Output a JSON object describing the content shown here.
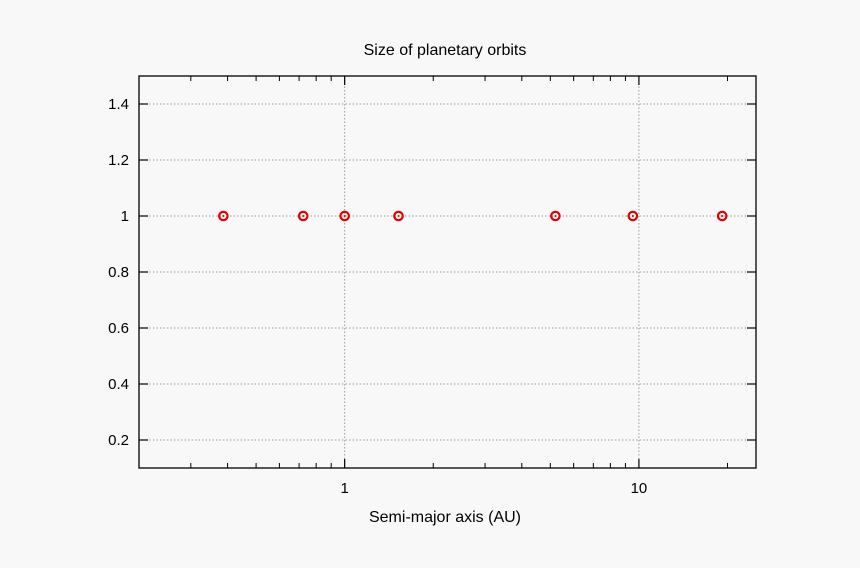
{
  "chart_data": {
    "type": "scatter",
    "title": "Size of planetary orbits",
    "xlabel": "Semi-major axis (AU)",
    "ylabel": "",
    "x_scale": "log",
    "xlim": [
      0.2,
      25
    ],
    "ylim": [
      0.1,
      1.5
    ],
    "x_major_ticks": [
      1,
      10
    ],
    "x_tick_labels": [
      "1",
      "10"
    ],
    "y_ticks": [
      0.2,
      0.4,
      0.6,
      0.8,
      1.0,
      1.2,
      1.4
    ],
    "y_tick_labels": [
      "0.2",
      "0.4",
      "0.6",
      "0.8",
      "1",
      "1.2",
      "1.4"
    ],
    "grid": true,
    "marker_color": "#e00000",
    "points": [
      {
        "x": 0.387,
        "y": 1
      },
      {
        "x": 0.723,
        "y": 1
      },
      {
        "x": 1.0,
        "y": 1
      },
      {
        "x": 1.524,
        "y": 1
      },
      {
        "x": 5.203,
        "y": 1
      },
      {
        "x": 9.537,
        "y": 1
      },
      {
        "x": 19.19,
        "y": 1
      }
    ]
  }
}
